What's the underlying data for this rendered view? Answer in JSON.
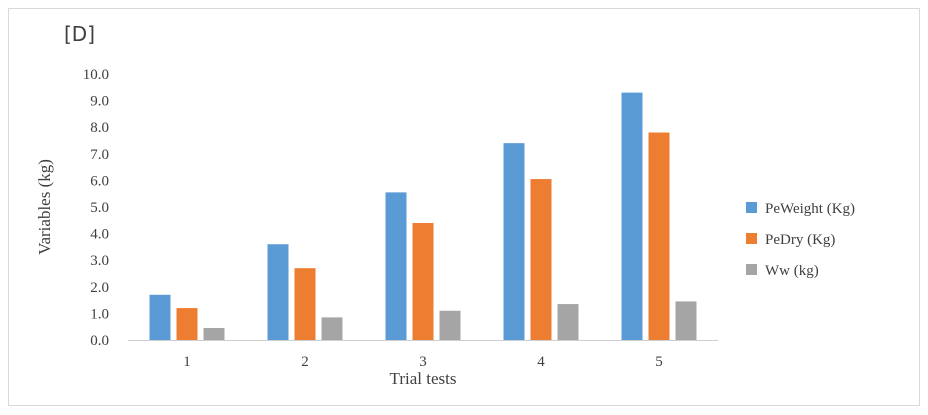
{
  "chart_data": {
    "type": "bar",
    "panel_label": "[D]",
    "xlabel": "Trial tests",
    "ylabel": "Variables (kg)",
    "categories": [
      "1",
      "2",
      "3",
      "4",
      "5"
    ],
    "ylim": [
      0,
      10
    ],
    "yticks": [
      "0.0",
      "1.0",
      "2.0",
      "3.0",
      "4.0",
      "5.0",
      "6.0",
      "7.0",
      "8.0",
      "9.0",
      "10.0"
    ],
    "grid": false,
    "legend_position": "right",
    "series": [
      {
        "name": "PeWeight (Kg)",
        "color": "#5b9bd5",
        "values": [
          1.7,
          3.6,
          5.55,
          7.4,
          9.3
        ]
      },
      {
        "name": "PeDry (Kg)",
        "color": "#ed7d31",
        "values": [
          1.2,
          2.7,
          4.4,
          6.05,
          7.8
        ]
      },
      {
        "name": "Ww (kg)",
        "color": "#a5a5a5",
        "values": [
          0.45,
          0.85,
          1.1,
          1.35,
          1.45
        ]
      }
    ]
  }
}
